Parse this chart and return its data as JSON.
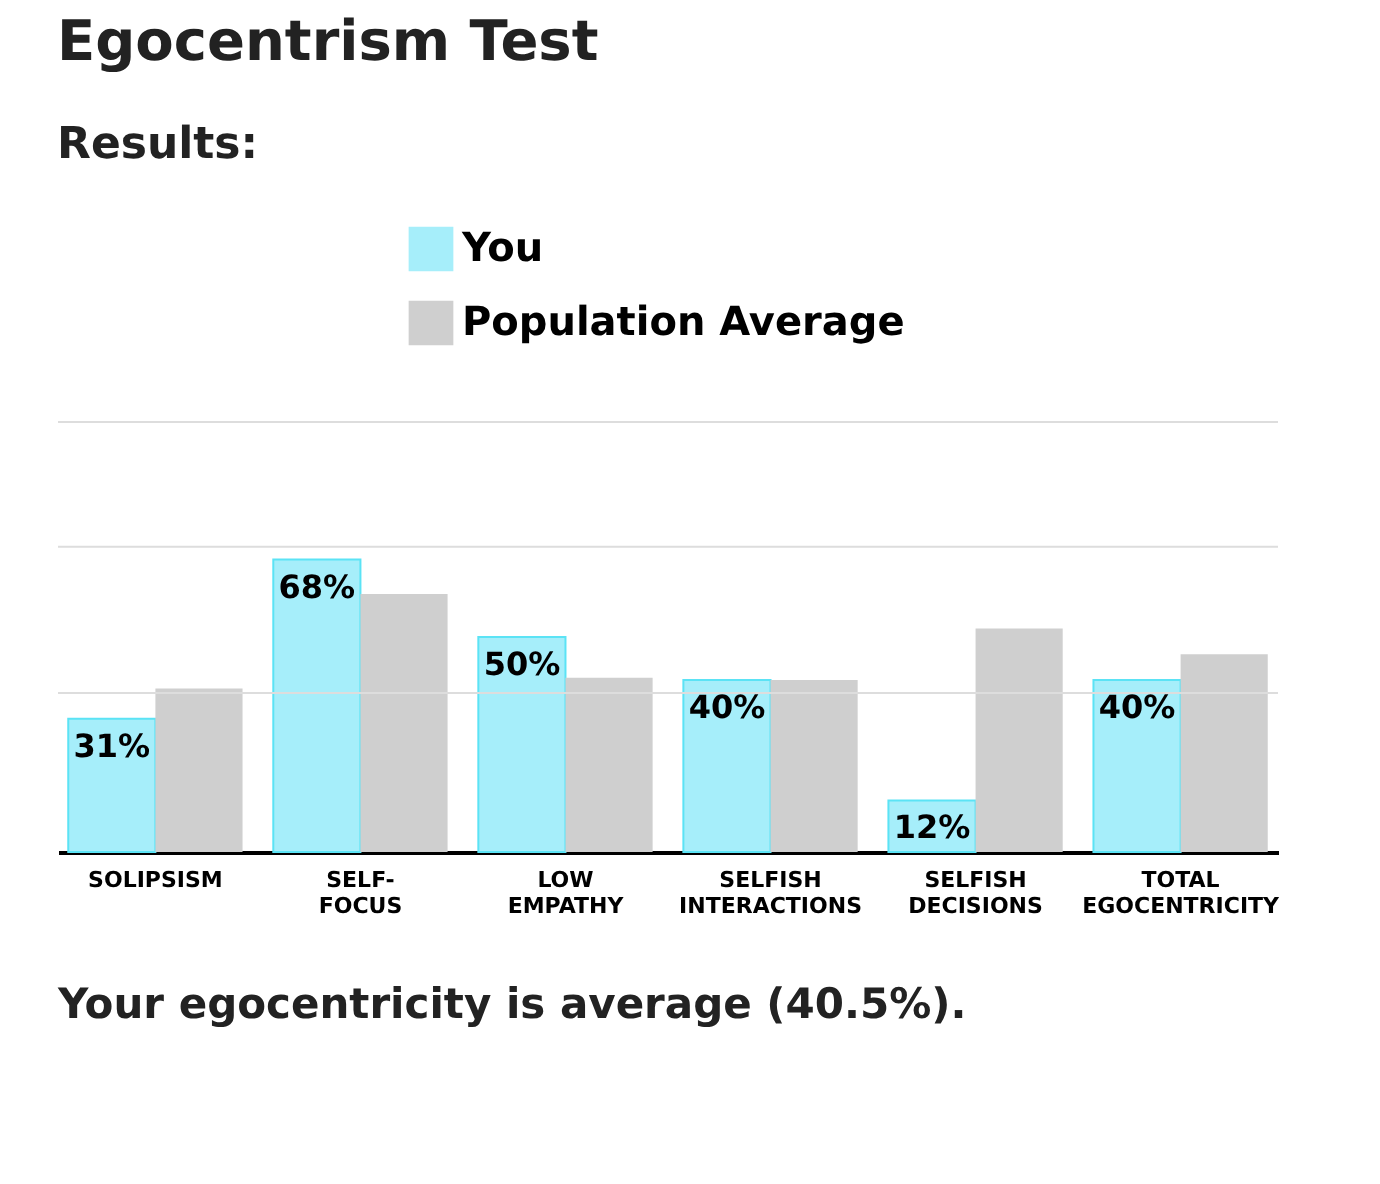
{
  "chart_data": {
    "type": "bar",
    "title": "Egocentrism Test",
    "subtitle": "Results:",
    "categories": [
      "SOLIPSISM",
      "SELF-\nFOCUS",
      "LOW\nEMPATHY",
      "SELFISH\nINTERACTIONS",
      "SELFISH\nDECISIONS",
      "TOTAL\nEGOCENTRICITY"
    ],
    "series": [
      {
        "name": "You",
        "color": "#a6eefa",
        "values": [
          31,
          68,
          50,
          40,
          12,
          40
        ],
        "value_labels": [
          "31%",
          "68%",
          "50%",
          "40%",
          "12%",
          "40%"
        ]
      },
      {
        "name": "Population Average",
        "color": "#cfcfcf",
        "values": [
          38,
          60,
          40.5,
          40,
          52,
          46
        ]
      }
    ],
    "ylim": [
      0,
      100
    ],
    "ref_lines": [
      {
        "axis": "y",
        "value": 37,
        "color": "#dddddd"
      },
      {
        "axis": "y",
        "value": 71,
        "color": "#dddddd"
      },
      {
        "axis": "y",
        "value": 100,
        "color": "#dddddd"
      }
    ],
    "tick_labels": "x",
    "legend": "top",
    "annotations": [
      "Your egocentricity is average (40.5%)."
    ]
  }
}
